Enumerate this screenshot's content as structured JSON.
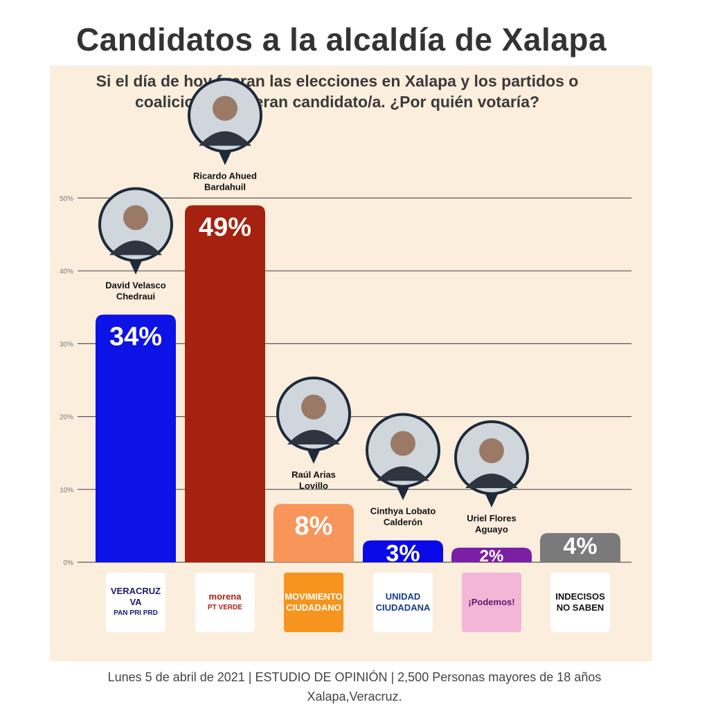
{
  "header": {
    "title": "Candidatos a la alcaldía de Xalapa",
    "subtitle_line1": "Si el día de hoy fueran las elecciones en Xalapa y los partidos o",
    "subtitle_line2": "coaliciones tuvieran candidato/a. ¿Por quién votaría?"
  },
  "chart_data": {
    "type": "bar",
    "categories": [
      "David Velasco Chedraui",
      "Ricardo Ahued Bardahuil",
      "Raúl Arias Lovillo",
      "Cinthya Lobato Calderón",
      "Uriel Flores Aguayo",
      "INDECISOS NO SABEN"
    ],
    "label_lines": [
      [
        "David Velasco",
        "Chedraui"
      ],
      [
        "Ricardo Ahued",
        "Bardahuil"
      ],
      [
        "Raúl Arias",
        "Lovillo"
      ],
      [
        "Cinthya Lobato",
        "Calderón"
      ],
      [
        "Uriel Flores",
        "Aguayo"
      ],
      []
    ],
    "values": [
      34,
      49,
      8,
      3,
      2,
      4
    ],
    "data_labels": [
      "34%",
      "49%",
      "8%",
      "3%",
      "2%",
      "4%"
    ],
    "colors": [
      "#0d12e6",
      "#a6210f",
      "#f7955a",
      "#0a0ae8",
      "#7a1fa6",
      "#7a7a7a"
    ],
    "ylim": [
      0,
      50
    ],
    "yticks": [
      0,
      10,
      20,
      30,
      40,
      50
    ],
    "ytick_labels": [
      "0%",
      "10%",
      "20%",
      "30%",
      "40%",
      "50%"
    ],
    "grid": true,
    "xlabel": "",
    "ylabel": ""
  },
  "logos": [
    {
      "name": "veracruz-va-logo",
      "text": "VERACRUZ VA",
      "sub": "PAN PRI PRD",
      "bg": "#ffffff",
      "color": "#1a1a6e"
    },
    {
      "name": "morena-logo",
      "text": "morena",
      "sub": "PT VERDE",
      "bg": "#ffffff",
      "color": "#a6210f"
    },
    {
      "name": "movimiento-ciudadano-logo",
      "text": "MOVIMIENTO CIUDADANO",
      "sub": "",
      "bg": "#f7941d",
      "color": "#ffffff"
    },
    {
      "name": "unidad-ciudadana-logo",
      "text": "UNIDAD CIUDADANA",
      "sub": "",
      "bg": "#ffffff",
      "color": "#1a3a8a"
    },
    {
      "name": "podemos-logo",
      "text": "¡Podemos!",
      "sub": "",
      "bg": "#f2b6d6",
      "color": "#5a1a6e"
    },
    {
      "name": "indecisos-box",
      "text": "INDECISOS NO SABEN",
      "sub": "",
      "bg": "#ffffff",
      "color": "#111111"
    }
  ],
  "footer": {
    "line1": "Lunes 5 de abril de 2021 |  ESTUDIO DE OPINIÓN | 2,500 Personas mayores de 18 años",
    "line2": "Xalapa,Veracruz."
  }
}
